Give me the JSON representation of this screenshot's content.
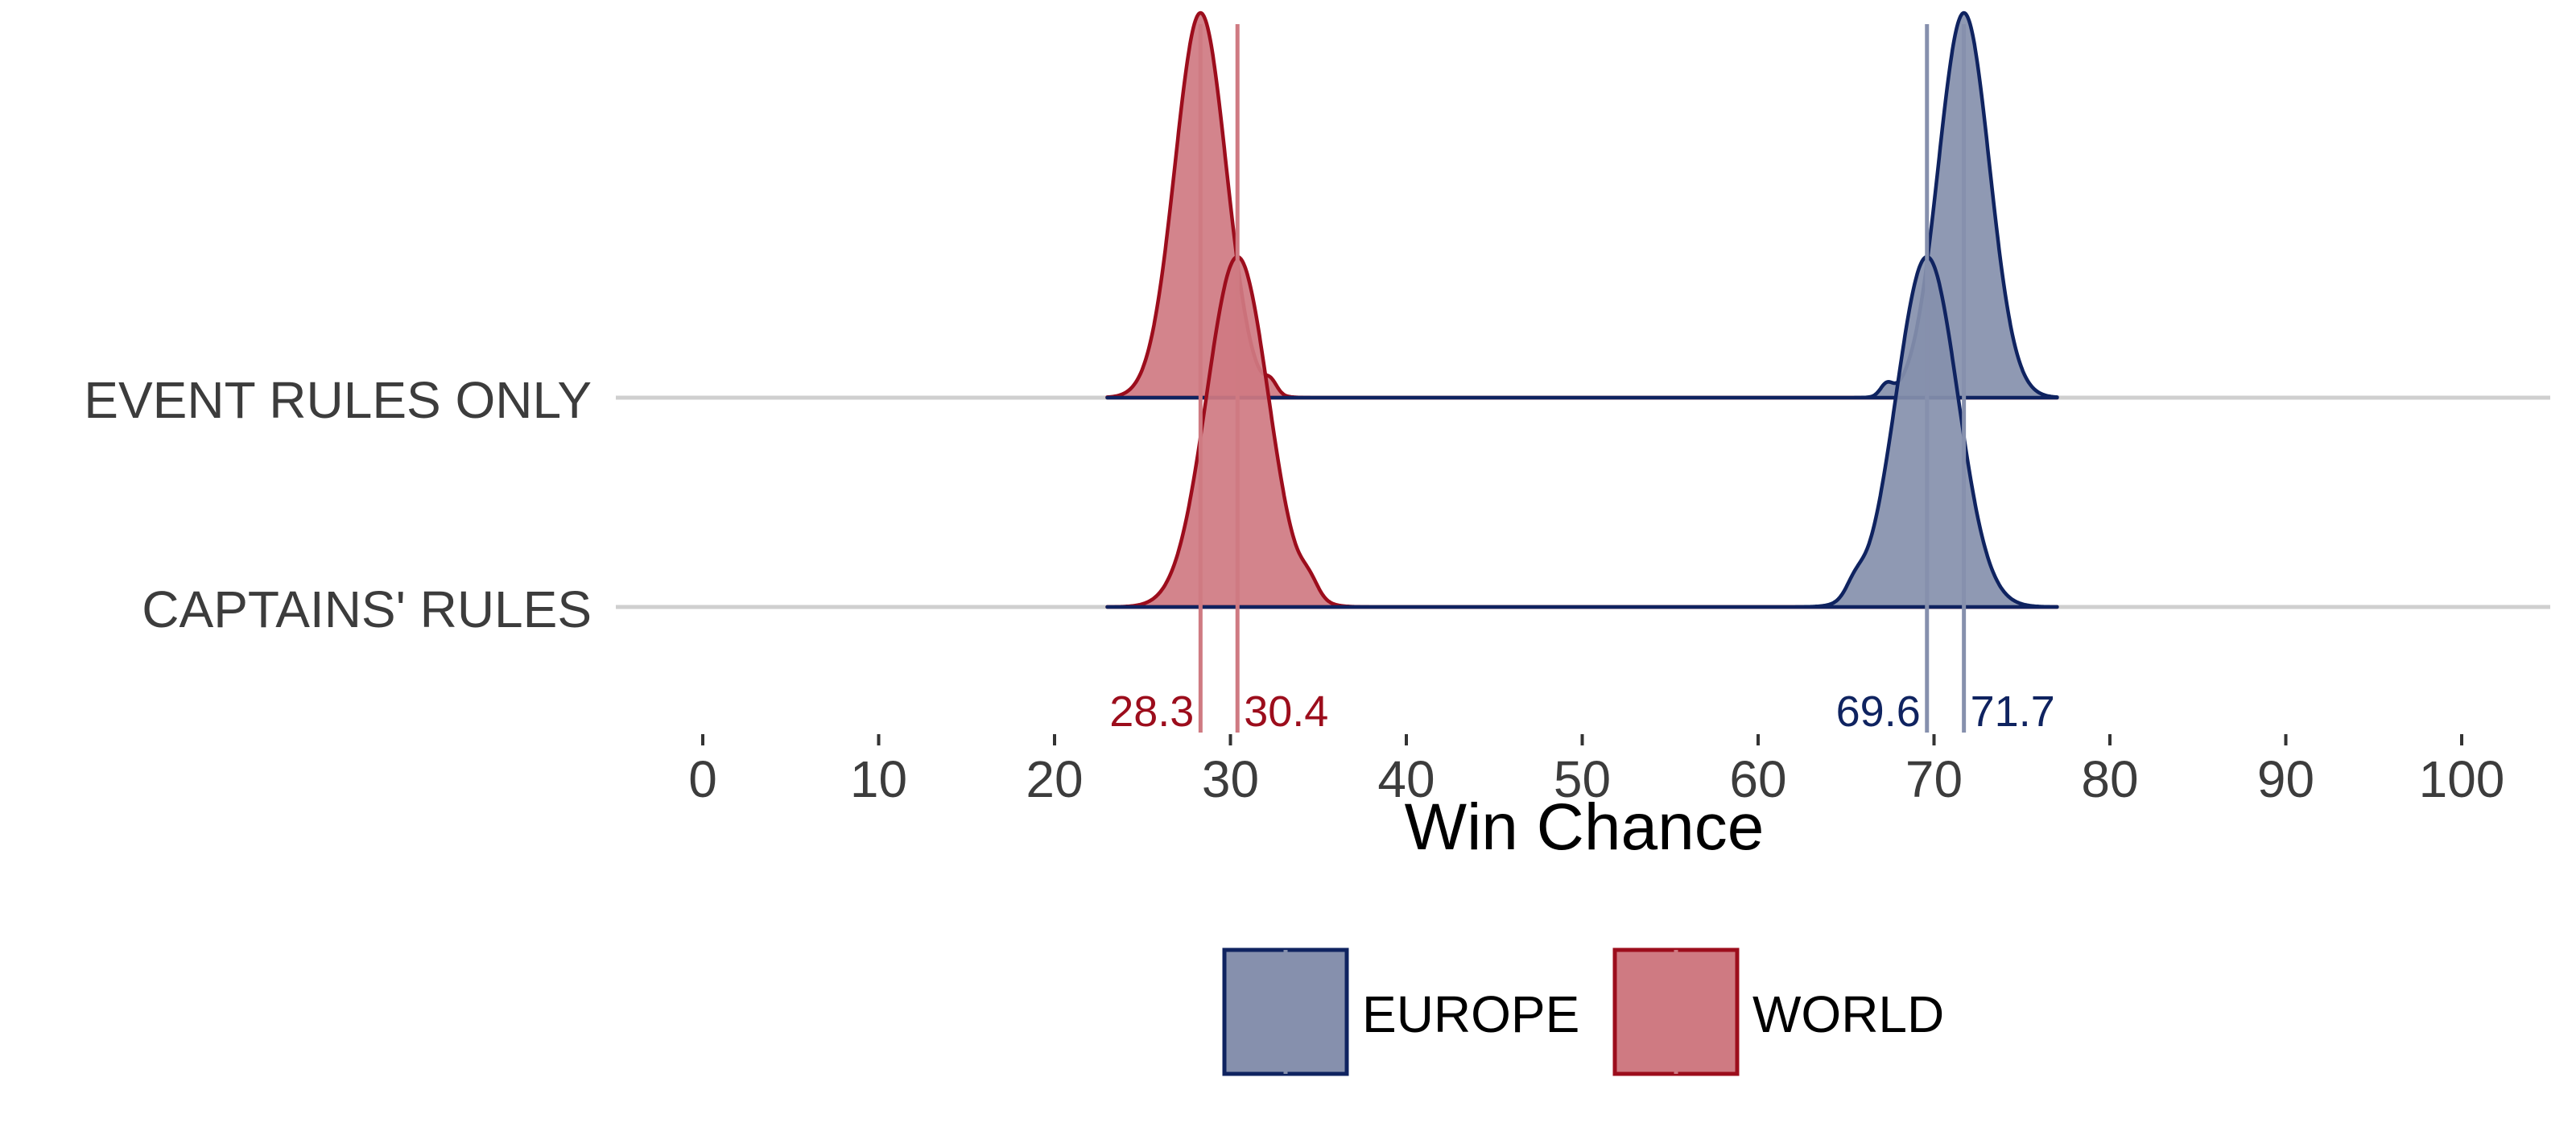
{
  "chart_data": {
    "type": "ridgeline-density",
    "xlabel": "Win Chance",
    "xlim": [
      0,
      100
    ],
    "x_ticks": [
      "0",
      "10",
      "20",
      "30",
      "40",
      "50",
      "60",
      "70",
      "80",
      "90",
      "100"
    ],
    "x_tick_values": [
      0,
      10,
      20,
      30,
      40,
      50,
      60,
      70,
      80,
      90,
      100
    ],
    "density_range": [
      23,
      77
    ],
    "rows": [
      {
        "label": "EVENT RULES ONLY",
        "series": [
          {
            "team": "WORLD",
            "peaks": [
              {
                "mean": 28.3,
                "sd": 1.45,
                "weight": 1.0
              },
              {
                "mean": 32.3,
                "sd": 0.35,
                "weight": 0.03
              }
            ]
          },
          {
            "team": "EUROPE",
            "peaks": [
              {
                "mean": 71.7,
                "sd": 1.45,
                "weight": 1.0
              },
              {
                "mean": 67.3,
                "sd": 0.35,
                "weight": 0.03
              }
            ]
          }
        ]
      },
      {
        "label": "CAPTAINS' RULES",
        "series": [
          {
            "team": "WORLD",
            "peaks": [
              {
                "mean": 30.4,
                "sd": 1.75,
                "weight": 1.0
              },
              {
                "mean": 34.5,
                "sd": 0.5,
                "weight": 0.04
              }
            ]
          },
          {
            "team": "EUROPE",
            "peaks": [
              {
                "mean": 69.6,
                "sd": 1.75,
                "weight": 1.0
              },
              {
                "mean": 65.5,
                "sd": 0.5,
                "weight": 0.04
              }
            ]
          }
        ]
      }
    ],
    "median_lines": [
      {
        "team": "WORLD",
        "value": 28.3,
        "label": "28.3"
      },
      {
        "team": "WORLD",
        "value": 30.4,
        "label": "30.4"
      },
      {
        "team": "EUROPE",
        "value": 69.6,
        "label": "69.6"
      },
      {
        "team": "EUROPE",
        "value": 71.7,
        "label": "71.7"
      }
    ],
    "legend": {
      "placement": "bottom",
      "items": [
        {
          "team": "EUROPE",
          "label": "EUROPE"
        },
        {
          "team": "WORLD",
          "label": "WORLD"
        }
      ]
    },
    "colors": {
      "EUROPE": {
        "line": "#0f2360",
        "fill": "#8690ad",
        "median": "#8690ad",
        "label": "#0f2360"
      },
      "WORLD": {
        "line": "#9c0d1c",
        "fill": "#cf7a82",
        "median": "#cf7a82",
        "label": "#9c0d1c"
      },
      "baseline": "#cfcfcf",
      "text": "#3c3c3c",
      "title": "#000000"
    },
    "grid": false
  }
}
